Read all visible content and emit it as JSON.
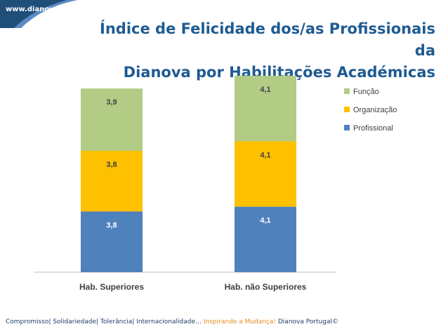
{
  "header": {
    "site": "www.dianova.pt",
    "title_line1": "Índice de Felicidade dos/as Profissionais da",
    "title_line2": "Dianova por Habilitações Académicas"
  },
  "chart_data": {
    "type": "bar",
    "stacked": true,
    "categories": [
      "Hab. Superiores",
      "Hab. não Superiores"
    ],
    "series": [
      {
        "name": "Profissional",
        "color": "#4f81bd",
        "values": [
          3.8,
          4.1
        ],
        "labels": [
          "3,8",
          "4,1"
        ]
      },
      {
        "name": "Organização",
        "color": "#ffc000",
        "values": [
          3.8,
          4.1
        ],
        "labels": [
          "3,8",
          "4,1"
        ]
      },
      {
        "name": "Função",
        "color": "#b2cb85",
        "values": [
          3.9,
          4.1
        ],
        "labels": [
          "3,9",
          "4,1"
        ]
      }
    ],
    "legend_order": [
      "Função",
      "Organização",
      "Profissional"
    ],
    "legend_position": "top-right",
    "title": "Índice de Felicidade dos/as Profissionais da Dianova por Habilitações Académicas",
    "xlabel": "",
    "ylabel": "",
    "ylim": [
      0,
      12.3
    ]
  },
  "footer": {
    "values_text": "Compromisso| Solidariedade| Tolerância| Internacionalidade…",
    "slogan": "Inspirando a Mudança!",
    "copyright": "Dianova Portugal©"
  },
  "colors": {
    "title": "#1f5b92",
    "corner": "#1f4e79"
  }
}
